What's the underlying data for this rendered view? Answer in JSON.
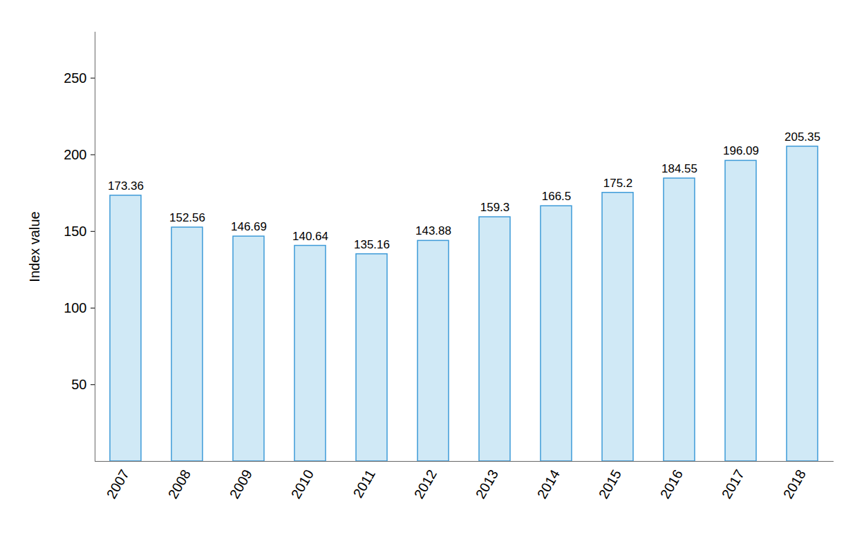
{
  "chart_data": {
    "type": "bar",
    "y_label": "Index value",
    "categories": [
      "2007",
      "2008",
      "2009",
      "2010",
      "2011",
      "2012",
      "2013",
      "2014",
      "2015",
      "2016",
      "2017",
      "2018"
    ],
    "values": [
      173.36,
      152.56,
      146.69,
      140.64,
      135.16,
      143.88,
      159.3,
      166.5,
      175.2,
      184.55,
      196.09,
      205.35
    ],
    "color": "#d0e9f6",
    "ylim": [
      0,
      280
    ],
    "yticks": [
      50,
      100,
      150,
      200,
      250
    ],
    "grid": false,
    "data_labels": true
  }
}
